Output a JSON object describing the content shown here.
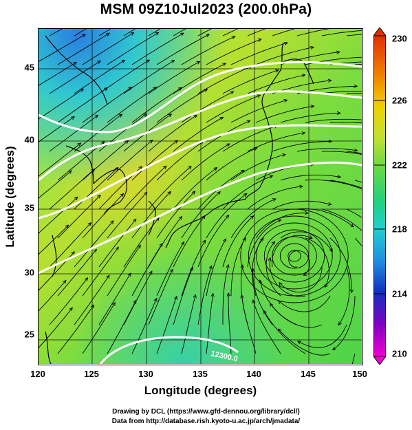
{
  "title": "MSM 09Z10Jul2023 (200.0hPa)",
  "xaxis": {
    "label": "Longitude (degrees)",
    "ticks": [
      "120",
      "125",
      "130",
      "135",
      "140",
      "145",
      "150"
    ]
  },
  "yaxis": {
    "label": "Latitude  (degrees)",
    "ticks": [
      "25",
      "30",
      "35",
      "40",
      "45"
    ]
  },
  "colorbar": {
    "ticks": [
      "230",
      "226",
      "222",
      "218",
      "214",
      "210"
    ]
  },
  "contour_labels": [
    "12300.0"
  ],
  "credits": {
    "line1": "Drawing by DCL (https://www.gfd-dennou.org/library/dcl/)",
    "line2": "Data from http://database.rish.kyoto-u.ac.jp/arch/jmadata/"
  },
  "colors": {
    "min": "#e000d0",
    "max": "#e04000"
  }
}
